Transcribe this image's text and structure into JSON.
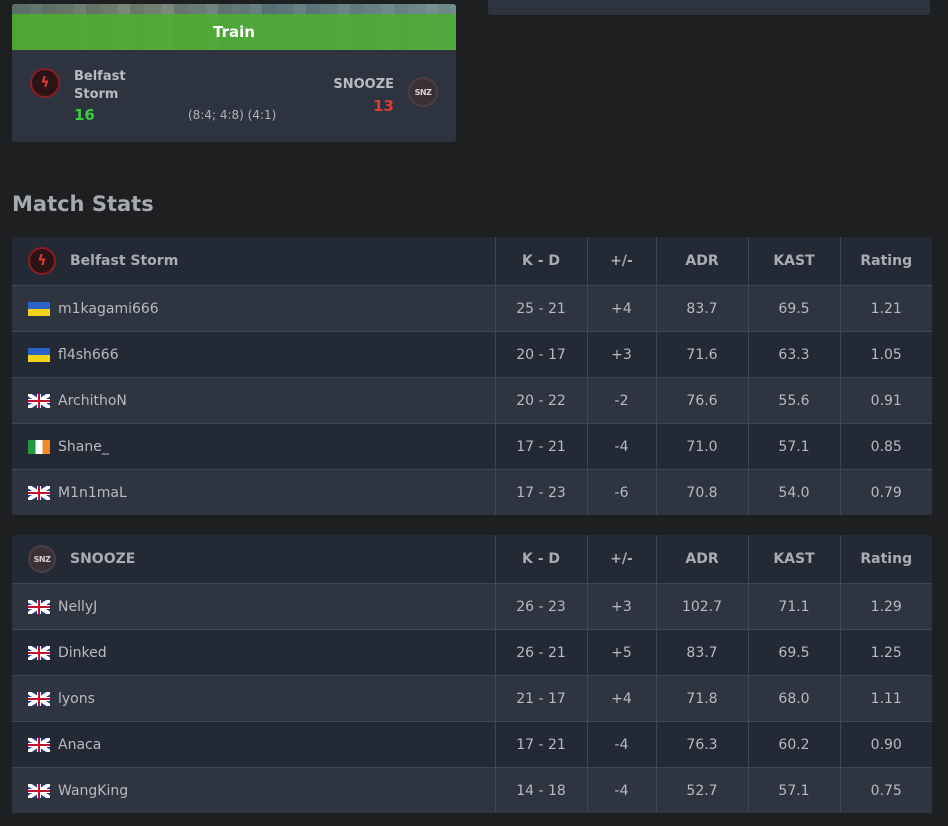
{
  "match_card": {
    "map": "Train",
    "team1": {
      "name": "Belfast Storm",
      "score": "16",
      "logo_icon": "belfast-storm-logo"
    },
    "team2": {
      "name": "SNOOZE",
      "score": "13",
      "logo_icon": "snooze-logo"
    },
    "halves": "(8:4; 4:8) (4:1)"
  },
  "section_title": "Match Stats",
  "columns": [
    "K - D",
    "+/-",
    "ADR",
    "KAST",
    "Rating"
  ],
  "teams": [
    {
      "name": "Belfast Storm",
      "players": [
        {
          "flag": "UA",
          "name": "m1kagami666",
          "kd": "25 - 21",
          "diff": "+4",
          "adr": "83.7",
          "kast": "69.5",
          "rating": "1.21"
        },
        {
          "flag": "UA",
          "name": "fl4sh666",
          "kd": "20 - 17",
          "diff": "+3",
          "adr": "71.6",
          "kast": "63.3",
          "rating": "1.05"
        },
        {
          "flag": "GB",
          "name": "ArchithoN",
          "kd": "20 - 22",
          "diff": "-2",
          "adr": "76.6",
          "kast": "55.6",
          "rating": "0.91"
        },
        {
          "flag": "IE",
          "name": "Shane_",
          "kd": "17 - 21",
          "diff": "-4",
          "adr": "71.0",
          "kast": "57.1",
          "rating": "0.85"
        },
        {
          "flag": "GB",
          "name": "M1n1maL",
          "kd": "17 - 23",
          "diff": "-6",
          "adr": "70.8",
          "kast": "54.0",
          "rating": "0.79"
        }
      ]
    },
    {
      "name": "SNOOZE",
      "players": [
        {
          "flag": "GB",
          "name": "NellyJ",
          "kd": "26 - 23",
          "diff": "+3",
          "adr": "102.7",
          "kast": "71.1",
          "rating": "1.29"
        },
        {
          "flag": "GB",
          "name": "Dinked",
          "kd": "26 - 21",
          "diff": "+5",
          "adr": "83.7",
          "kast": "69.5",
          "rating": "1.25"
        },
        {
          "flag": "GB",
          "name": "lyons",
          "kd": "21 - 17",
          "diff": "+4",
          "adr": "71.8",
          "kast": "68.0",
          "rating": "1.11"
        },
        {
          "flag": "GB",
          "name": "Anaca",
          "kd": "17 - 21",
          "diff": "-4",
          "adr": "76.3",
          "kast": "60.2",
          "rating": "0.90"
        },
        {
          "flag": "GB",
          "name": "WangKing",
          "kd": "14 - 18",
          "diff": "-4",
          "adr": "52.7",
          "kast": "57.1",
          "rating": "0.75"
        }
      ]
    }
  ],
  "colors": {
    "positive": "#3ec93e",
    "negative": "#e23a2e",
    "map_banner": "#4caf2e"
  }
}
